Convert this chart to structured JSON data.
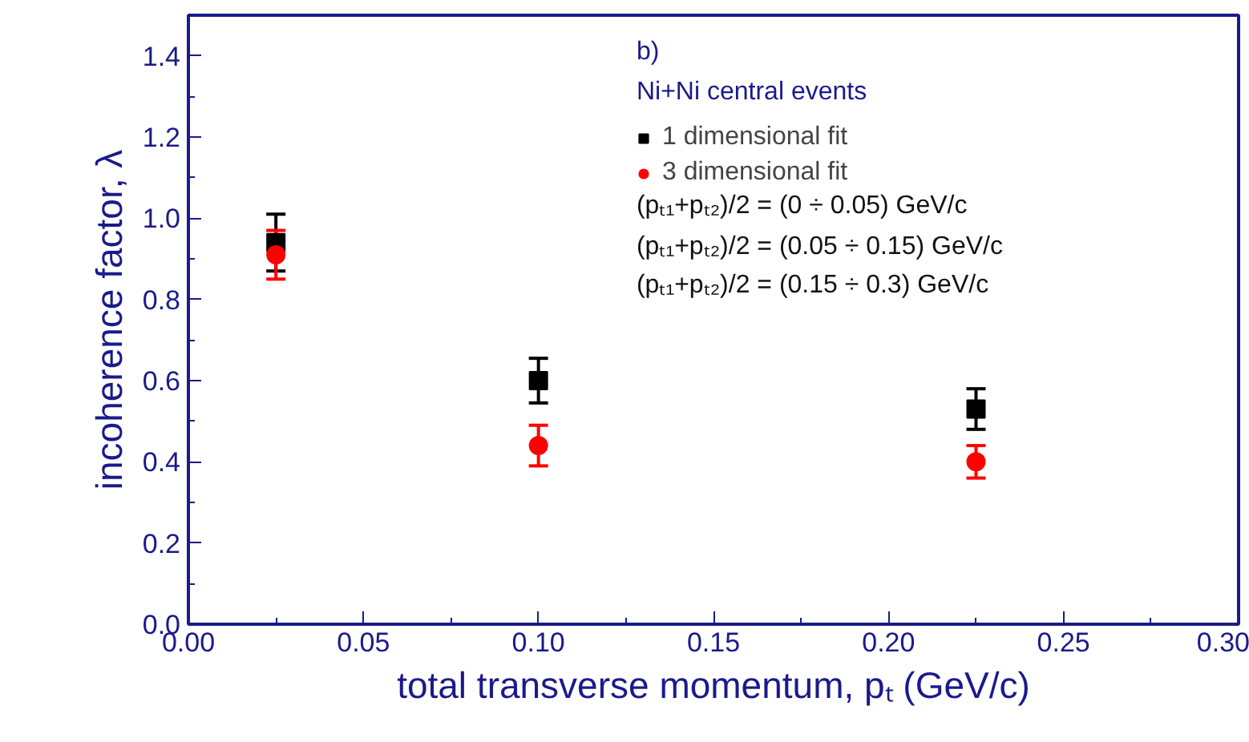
{
  "chart_data": {
    "type": "scatter",
    "xlabel": "total transverse momentum, pₜ (GeV/c)",
    "ylabel": "incoherence factor, λ",
    "x": [
      0.025,
      0.1,
      0.225
    ],
    "series": [
      {
        "name": "1 dimensional fit",
        "color": "#000000",
        "marker": "square",
        "values": [
          0.94,
          0.6,
          0.53
        ],
        "errors": [
          0.07,
          0.055,
          0.05
        ]
      },
      {
        "name": "3 dimensional fit",
        "color": "#ff0000",
        "marker": "circle",
        "values": [
          0.91,
          0.44,
          0.4
        ],
        "errors": [
          0.06,
          0.05,
          0.04
        ]
      }
    ],
    "annotations": [
      "b)",
      "Ni+Ni central events",
      "(pₜ₁+pₜ₂)/2 = (0 ÷ 0.05) GeV/c",
      "(pₜ₁+pₜ₂)/2  = (0.05 ÷ 0.15) GeV/c",
      "(pₜ₁+pₜ₂)/2  = (0.15 ÷ 0.3) GeV/c"
    ],
    "xlim": [
      0.0,
      0.3
    ],
    "xticks": [
      {
        "value": 0.0,
        "label": "0.00"
      },
      0.05,
      {
        "value": 0.1,
        "label": "0.10"
      },
      0.15,
      {
        "value": 0.2,
        "label": "0.20"
      },
      0.25,
      {
        "value": 0.3,
        "label": "0.30"
      }
    ],
    "ylim": [
      0.0,
      1.5
    ],
    "yticks": [
      {
        "value": 0.0,
        "label": "0.0"
      },
      0.2,
      0.4,
      0.6,
      0.8,
      {
        "value": 1.0,
        "label": "1.0"
      },
      1.2,
      1.4
    ],
    "grid": false,
    "legend": "top"
  }
}
